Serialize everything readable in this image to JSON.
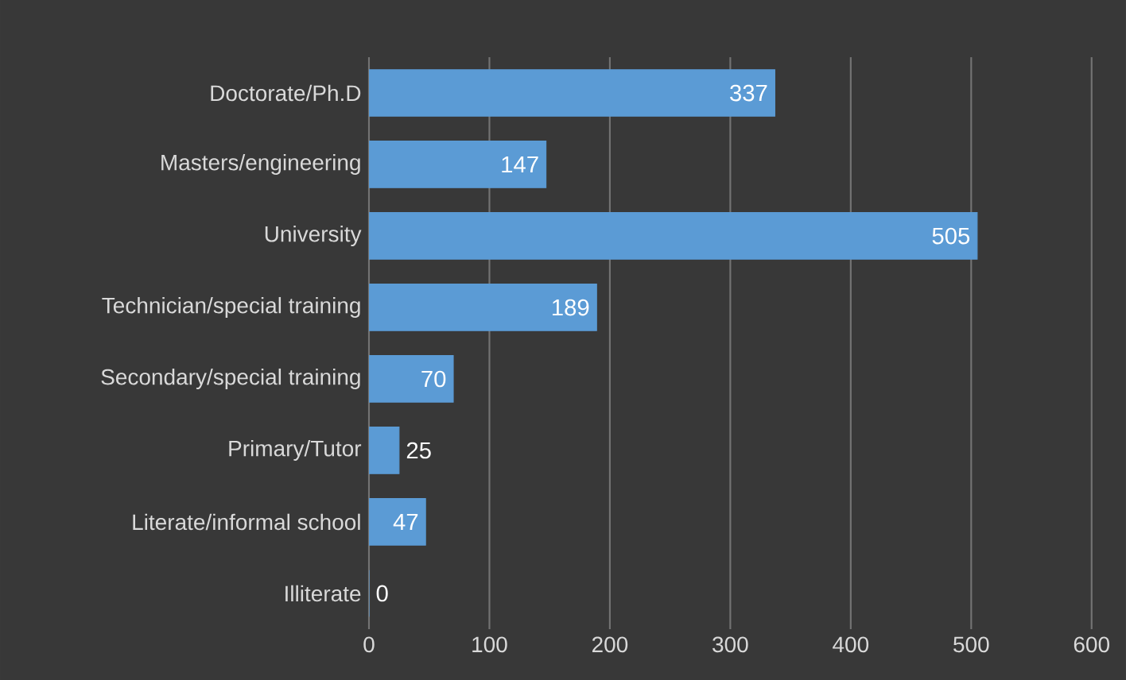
{
  "chart_data": {
    "type": "bar",
    "orientation": "horizontal",
    "categories": [
      "Doctorate/Ph.D",
      "Masters/engineering",
      "University",
      "Technician/special training",
      "Secondary/special training",
      "Primary/Tutor",
      "Literate/informal school",
      "Illiterate"
    ],
    "values": [
      337,
      147,
      505,
      189,
      70,
      25,
      47,
      0
    ],
    "color": "#5b9bd5",
    "xlim": [
      0,
      625
    ],
    "xticks": [
      0,
      100,
      200,
      300,
      400,
      500,
      600
    ],
    "grid": "x",
    "data_labels": true
  }
}
